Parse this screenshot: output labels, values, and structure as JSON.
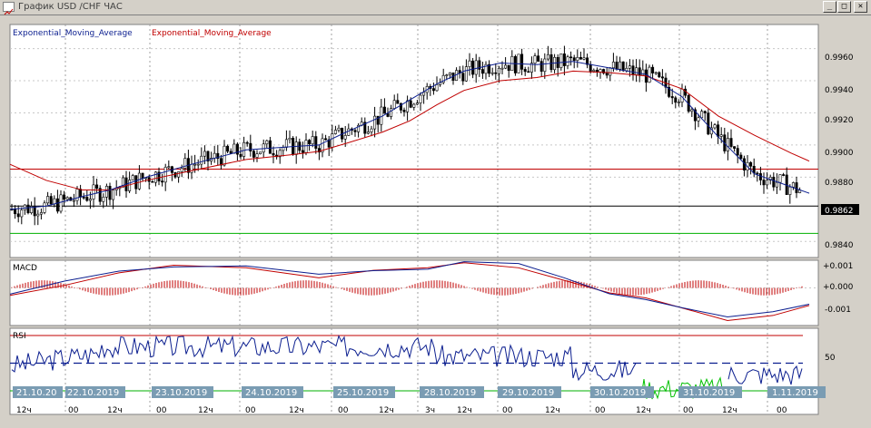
{
  "window": {
    "title": "График USD /CHF  ЧАС",
    "buttons": [
      "_",
      "□",
      "✕"
    ]
  },
  "colors": {
    "background": "#ffffff",
    "grid": "#a0a0a0",
    "candle": "#000000",
    "ema_fast": "#0b1e8f",
    "ema_slow": "#c00000",
    "support_line": "#00b000",
    "resistance_line": "#c00000",
    "current_price_line": "#000000",
    "date_label_bg": "#7a9cb3",
    "price_tag_bg": "#000000"
  },
  "price_panel": {
    "legend": [
      {
        "text": "Exponential_Moving_Average",
        "color": "#0b1e8f"
      },
      {
        "text": "Exponential_Moving_Average",
        "color": "#c00000"
      }
    ],
    "current_price": "0.9862",
    "yaxis_labels": [
      "0.9960",
      "0.9940",
      "0.9920",
      "0.9900",
      "0.9880",
      "0.9840"
    ]
  },
  "macd_panel": {
    "label": "MACD",
    "yaxis_labels": [
      "+0.001",
      "+0.000",
      "-0.001"
    ]
  },
  "rsi_panel": {
    "label": "RSI",
    "yaxis_labels": [
      "50"
    ]
  },
  "time_axis": {
    "dates": [
      "21.10.20",
      "22.10.2019",
      "23.10.2019",
      "24.10.2019",
      "25.10.2019",
      "28.10.2019",
      "29.10.2019",
      "30.10.2019",
      "31.10.2019",
      "1.11.2019"
    ],
    "hours": [
      "12ч",
      "00",
      "12ч",
      "00",
      "12ч",
      "00",
      "12ч",
      "00",
      "12ч",
      "3ч",
      "12ч",
      "00",
      "12ч",
      "00",
      "12ч",
      "00",
      "12ч",
      "00"
    ]
  },
  "chart_data": {
    "type": "candlestick",
    "symbol": "USD/CHF",
    "period": "H1",
    "price_range": [
      0.983,
      0.9975
    ],
    "ema_fast": [
      [
        0,
        0.986
      ],
      [
        40,
        0.9862
      ],
      [
        80,
        0.9868
      ],
      [
        110,
        0.9872
      ],
      [
        150,
        0.988
      ],
      [
        200,
        0.9888
      ],
      [
        260,
        0.9897
      ],
      [
        310,
        0.9899
      ],
      [
        340,
        0.99
      ],
      [
        370,
        0.9908
      ],
      [
        410,
        0.9918
      ],
      [
        440,
        0.9928
      ],
      [
        470,
        0.9938
      ],
      [
        500,
        0.9946
      ],
      [
        540,
        0.9951
      ],
      [
        580,
        0.995
      ],
      [
        620,
        0.9952
      ],
      [
        660,
        0.9948
      ],
      [
        700,
        0.9944
      ],
      [
        740,
        0.993
      ],
      [
        780,
        0.9905
      ],
      [
        820,
        0.9882
      ],
      [
        860,
        0.9874
      ],
      [
        880,
        0.987
      ]
    ],
    "ema_slow": [
      [
        0,
        0.9888
      ],
      [
        40,
        0.9878
      ],
      [
        80,
        0.9872
      ],
      [
        110,
        0.9872
      ],
      [
        150,
        0.9878
      ],
      [
        200,
        0.9884
      ],
      [
        260,
        0.9891
      ],
      [
        310,
        0.9894
      ],
      [
        340,
        0.9896
      ],
      [
        370,
        0.9901
      ],
      [
        410,
        0.9908
      ],
      [
        440,
        0.9915
      ],
      [
        470,
        0.9925
      ],
      [
        500,
        0.9934
      ],
      [
        540,
        0.994
      ],
      [
        580,
        0.9942
      ],
      [
        620,
        0.9946
      ],
      [
        660,
        0.9945
      ],
      [
        700,
        0.9943
      ],
      [
        740,
        0.9935
      ],
      [
        780,
        0.9918
      ],
      [
        820,
        0.9906
      ],
      [
        860,
        0.9895
      ],
      [
        880,
        0.989
      ]
    ],
    "support": 0.9845,
    "resistance": 0.9885,
    "current": 0.9862,
    "macd_range": [
      -0.0015,
      0.0011
    ],
    "macd_signal": [
      [
        0,
        -0.0003
      ],
      [
        60,
        0.0001
      ],
      [
        120,
        0.0006
      ],
      [
        180,
        0.0009
      ],
      [
        260,
        0.0008
      ],
      [
        340,
        0.0004
      ],
      [
        400,
        0.0007
      ],
      [
        460,
        0.0008
      ],
      [
        500,
        0.001
      ],
      [
        560,
        0.0008
      ],
      [
        610,
        0.0003
      ],
      [
        660,
        -0.0002
      ],
      [
        700,
        -0.0004
      ],
      [
        740,
        -0.0008
      ],
      [
        790,
        -0.0013
      ],
      [
        840,
        -0.0011
      ],
      [
        880,
        -0.0007
      ]
    ],
    "rsi_range": [
      0,
      100
    ],
    "rsi_levels": [
      30,
      50,
      70
    ]
  }
}
